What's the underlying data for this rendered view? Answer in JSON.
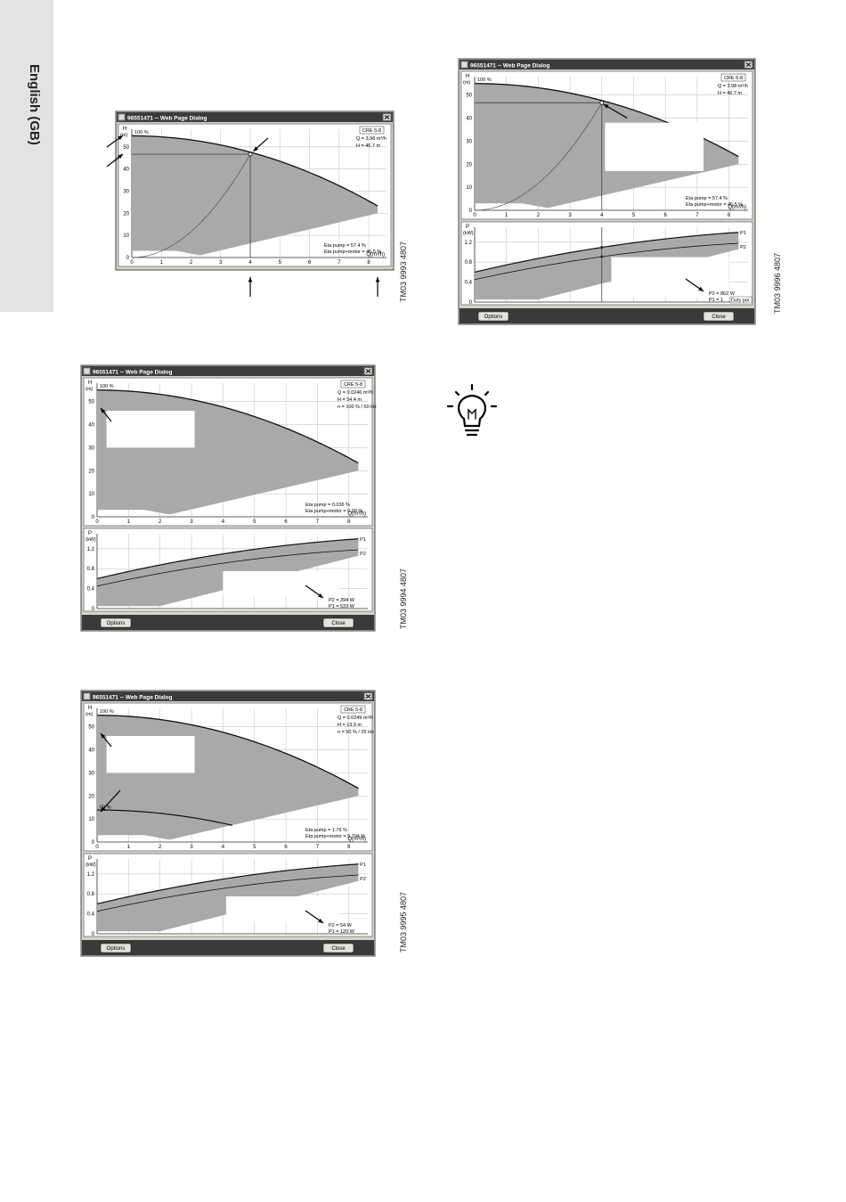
{
  "sidebar": {
    "label": "English (GB)"
  },
  "figures": [
    {
      "caption": "TM03 9993 4807",
      "dialog": {
        "title": "96551471 -- Web Page Dialog",
        "product": "CRE 5-8",
        "h_axis_label": "H",
        "h_unit": "(m)",
        "h_ticks": [
          "0",
          "10",
          "20",
          "30",
          "40",
          "50"
        ],
        "q_ticks": [
          "0",
          "1",
          "2",
          "3",
          "4",
          "5",
          "6",
          "7",
          "8"
        ],
        "q_label": "Q(m³/h)",
        "readout": [
          "Q = 3.98 m³/h",
          "H = 46.7 m"
        ],
        "speed_labels": [
          "100 %"
        ],
        "efficiency": [
          "Eta pump = 57.4 %",
          "Eta pump+motor = 46.5 %"
        ]
      }
    },
    {
      "caption": "TM03 9996 4807",
      "dialog": {
        "title": "96551471 -- Web Page Dialog",
        "product": "CRE 5-8",
        "h_axis_label": "H",
        "h_unit": "(m)",
        "h_ticks": [
          "0",
          "10",
          "20",
          "30",
          "40",
          "50"
        ],
        "q_ticks": [
          "0",
          "1",
          "2",
          "3",
          "4",
          "5",
          "6",
          "7",
          "8"
        ],
        "q_label": "Q(m³/h)",
        "readout": [
          "Q = 3.98 m³/h",
          "H = 46.7 m"
        ],
        "speed_labels": [
          "100 %"
        ],
        "efficiency": [
          "Eta pump = 57.4 %",
          "Eta pump+motor = 46.5 %"
        ],
        "power": {
          "axis_label": "P",
          "unit": "(kW)",
          "ticks": [
            "0",
            "0.4",
            "0.8",
            "1.2"
          ],
          "curve_labels": [
            "P1",
            "P2"
          ],
          "readout": [
            "P2 = 862 W",
            "P1 = 1"
          ],
          "note": "Duty poi"
        },
        "buttons": [
          "Options",
          "Close"
        ]
      }
    },
    {
      "caption": "TM03 9994 4807",
      "dialog": {
        "title": "96551471 -- Web Page Dialog",
        "product": "CRE 5-8",
        "h_axis_label": "H",
        "h_unit": "(m)",
        "h_ticks": [
          "0",
          "10",
          "20",
          "30",
          "40",
          "50"
        ],
        "q_ticks": [
          "0",
          "1",
          "2",
          "3",
          "4",
          "5",
          "6",
          "7",
          "8"
        ],
        "q_label": "Q(m³/h)",
        "readout": [
          "Q = 0.0246 m³/h",
          "H = 54.4 m",
          "n = 100 % / 50 Hz"
        ],
        "speed_labels": [
          "100 %"
        ],
        "efficiency": [
          "Eta pump = 0.036 %",
          "Eta pump+motor = 0.09 %"
        ],
        "power": {
          "axis_label": "P",
          "unit": "(kW)",
          "ticks": [
            "0",
            "0.4",
            "0.8",
            "1.2"
          ],
          "curve_labels": [
            "P1",
            "P2"
          ],
          "readout": [
            "P2 = 394 W",
            "P1 = 533 W"
          ]
        },
        "buttons": [
          "Options",
          "Close"
        ]
      }
    },
    {
      "caption": "TM03 9995 4807",
      "dialog": {
        "title": "96551471 -- Web Page Dialog",
        "product": "CRE 5-8",
        "h_axis_label": "H",
        "h_unit": "(m)",
        "h_ticks": [
          "0",
          "10",
          "20",
          "30",
          "40",
          "50"
        ],
        "q_ticks": [
          "0",
          "1",
          "2",
          "3",
          "4",
          "5",
          "6",
          "7",
          "8"
        ],
        "q_label": "Q(m³/h)",
        "readout": [
          "Q = 0.0249 m³/h",
          "H = 13.9 m",
          "n = 50 % / 25 Hz"
        ],
        "speed_labels": [
          "100 %",
          "50 %"
        ],
        "efficiency": [
          "Eta pump = 1.76 %",
          "Eta pump+motor = 0.794 %"
        ],
        "power": {
          "axis_label": "P",
          "unit": "(kW)",
          "ticks": [
            "0",
            "0.4",
            "0.8",
            "1.2"
          ],
          "curve_labels": [
            "P1",
            "P2"
          ],
          "readout": [
            "P2 = 54 W",
            "P1 = 120 W"
          ]
        },
        "buttons": [
          "Options",
          "Close"
        ]
      }
    }
  ]
}
